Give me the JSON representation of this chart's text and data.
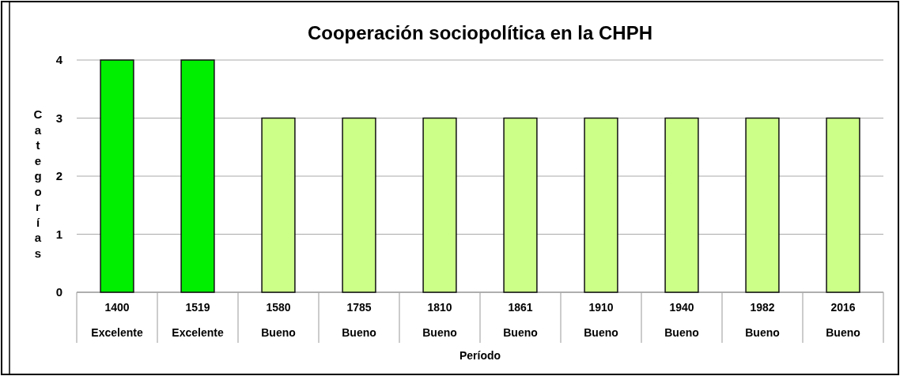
{
  "chart_data": {
    "type": "bar",
    "title": "Cooperación sociopolítica en la CHPH",
    "xlabel": "Período",
    "ylabel": "Categorías",
    "categories": [
      "1400\nExcelente",
      "1519\nExcelente",
      "1580\nBueno",
      "1785\nBueno",
      "1810\nBueno",
      "1861\nBueno",
      "1910\nBueno",
      "1940\nBueno",
      "1982\nBueno",
      "2016\nBueno"
    ],
    "values": [
      4,
      4,
      3,
      3,
      3,
      3,
      3,
      3,
      3,
      3
    ],
    "colors": [
      "#00ee00",
      "#00ee00",
      "#ccff88",
      "#ccff88",
      "#ccff88",
      "#ccff88",
      "#ccff88",
      "#ccff88",
      "#ccff88",
      "#ccff88"
    ],
    "ylim": [
      0,
      4
    ],
    "yticks": [
      0,
      1,
      2,
      3,
      4
    ],
    "grid": "y"
  }
}
